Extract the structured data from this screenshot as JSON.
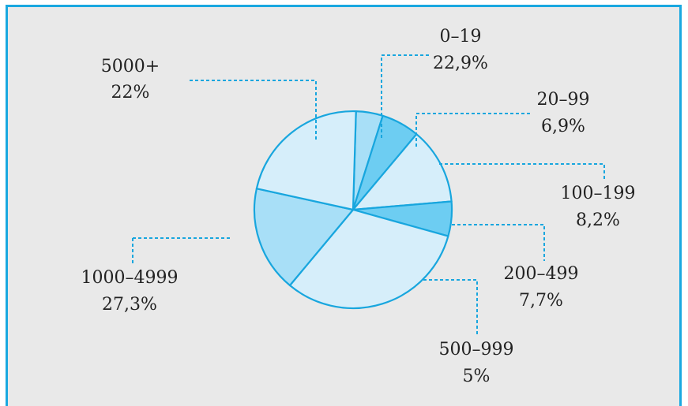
{
  "chart_data": {
    "type": "pie",
    "title": "",
    "slices": [
      {
        "label": "0–19",
        "value_label": "22,9%",
        "value": 22.9,
        "color": "#a8dff7"
      },
      {
        "label": "20–99",
        "value_label": "6,9%",
        "value": 6.9,
        "color": "#6dcdf2"
      },
      {
        "label": "100–199",
        "value_label": "8,2%",
        "value": 8.2,
        "color": "#d6eefa"
      },
      {
        "label": "200–499",
        "value_label": "7,7%",
        "value": 7.7,
        "color": "#6dcdf2"
      },
      {
        "label": "500–999",
        "value_label": "5%",
        "value": 5,
        "color": "#d6eefa"
      },
      {
        "label": "1000–4999",
        "value_label": "27,3%",
        "value": 27.3,
        "color": "#a8dff7"
      },
      {
        "label": "5000+",
        "value_label": "22%",
        "value": 22,
        "color": "#d6eefa"
      }
    ]
  },
  "colors": {
    "frame": "#1aa8e0",
    "background": "#e9e9e9",
    "outline": "#18a6de"
  }
}
